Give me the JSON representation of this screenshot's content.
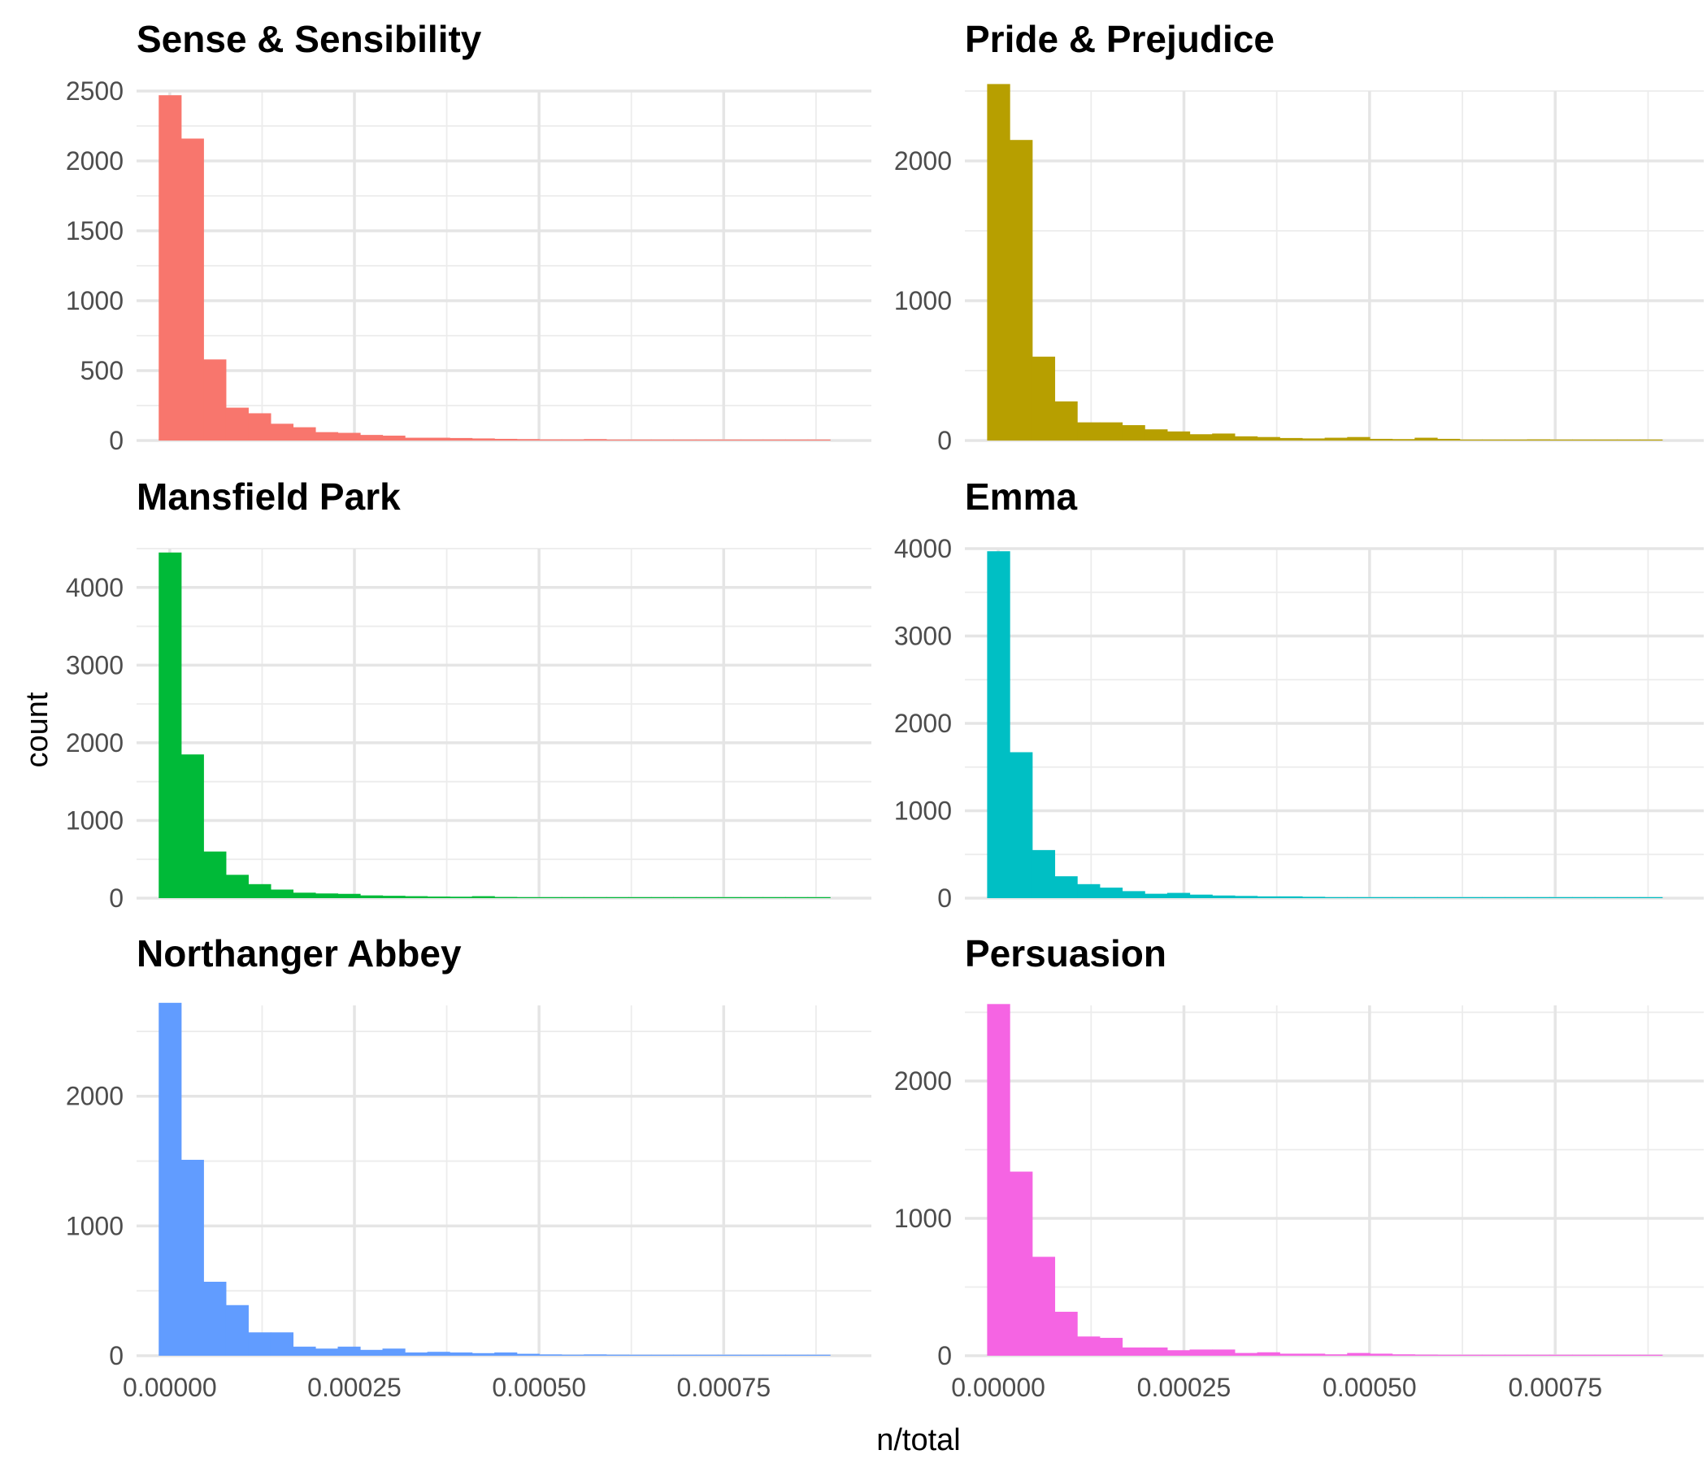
{
  "chart_data": {
    "type": "bar",
    "layout": "facet_wrap",
    "ncol": 2,
    "xlabel": "n/total",
    "ylabel": "count",
    "grid": true,
    "legend": "none",
    "bin_start": -1.5e-05,
    "bin_width": 3.03e-05,
    "x_ticks": [
      0.0,
      0.00025,
      0.0005,
      0.00075
    ],
    "x_tick_labels": [
      "0.00000",
      "0.00025",
      "0.00050",
      "0.00075"
    ],
    "xlim": [
      -4.5e-05,
      0.00095
    ],
    "panels": [
      {
        "title": "Sense & Sensibility",
        "color": "#F8766D",
        "ylim": [
          0,
          2500
        ],
        "y_ticks": [
          0,
          500,
          1000,
          1500,
          2000,
          2500
        ],
        "y_tick_labels": [
          "0",
          "500",
          "1000",
          "1500",
          "2000",
          "2500"
        ],
        "values": [
          2470,
          2160,
          580,
          235,
          195,
          120,
          95,
          60,
          55,
          40,
          35,
          20,
          20,
          18,
          15,
          12,
          10,
          8,
          8,
          10,
          6,
          5,
          5,
          4,
          4,
          3,
          4,
          2,
          3,
          2
        ]
      },
      {
        "title": "Pride & Prejudice",
        "color": "#B79F00",
        "ylim": [
          0,
          2500
        ],
        "y_ticks": [
          0,
          1000,
          2000
        ],
        "y_tick_labels": [
          "0",
          "1000",
          "2000"
        ],
        "values": [
          2550,
          2150,
          600,
          280,
          130,
          130,
          110,
          80,
          65,
          45,
          50,
          30,
          25,
          18,
          15,
          20,
          25,
          12,
          10,
          20,
          12,
          6,
          5,
          5,
          8,
          5,
          4,
          3,
          2,
          2
        ]
      },
      {
        "title": "Mansfield Park",
        "color": "#00BA38",
        "ylim": [
          0,
          4500
        ],
        "y_ticks": [
          0,
          1000,
          2000,
          3000,
          4000
        ],
        "y_tick_labels": [
          "0",
          "1000",
          "2000",
          "3000",
          "4000"
        ],
        "values": [
          4450,
          1850,
          600,
          300,
          180,
          110,
          70,
          60,
          55,
          35,
          30,
          25,
          20,
          18,
          25,
          15,
          10,
          8,
          6,
          6,
          5,
          4,
          3,
          3,
          3,
          2,
          2,
          2,
          2,
          2
        ]
      },
      {
        "title": "Emma",
        "color": "#00BFC4",
        "ylim": [
          0,
          4000
        ],
        "y_ticks": [
          0,
          1000,
          2000,
          3000,
          4000
        ],
        "y_tick_labels": [
          "0",
          "1000",
          "2000",
          "3000",
          "4000"
        ],
        "values": [
          3970,
          1670,
          550,
          250,
          160,
          120,
          80,
          50,
          60,
          40,
          30,
          25,
          20,
          20,
          15,
          10,
          10,
          8,
          8,
          6,
          5,
          5,
          4,
          4,
          3,
          3,
          3,
          2,
          2,
          2
        ]
      },
      {
        "title": "Northanger Abbey",
        "color": "#619CFF",
        "ylim": [
          0,
          2700
        ],
        "y_ticks": [
          0,
          1000,
          2000
        ],
        "y_tick_labels": [
          "0",
          "1000",
          "2000"
        ],
        "values": [
          2720,
          1510,
          570,
          390,
          180,
          180,
          70,
          55,
          70,
          45,
          55,
          25,
          30,
          25,
          20,
          25,
          15,
          10,
          8,
          10,
          8,
          6,
          5,
          5,
          4,
          4,
          3,
          3,
          2,
          2
        ]
      },
      {
        "title": "Persuasion",
        "color": "#F564E3",
        "ylim": [
          0,
          2550
        ],
        "y_ticks": [
          0,
          1000,
          2000
        ],
        "y_tick_labels": [
          "0",
          "1000",
          "2000"
        ],
        "values": [
          2560,
          1340,
          720,
          320,
          140,
          130,
          60,
          60,
          40,
          45,
          45,
          20,
          25,
          15,
          15,
          10,
          20,
          15,
          10,
          8,
          6,
          5,
          5,
          4,
          6,
          3,
          3,
          2,
          2,
          2
        ]
      }
    ]
  }
}
